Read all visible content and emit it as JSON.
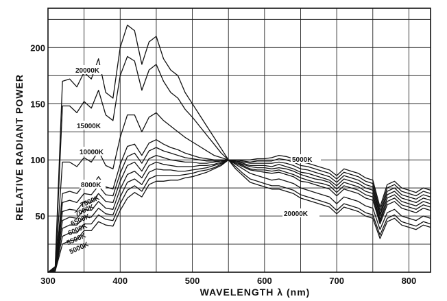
{
  "chart_data": {
    "type": "line",
    "title": "",
    "xlabel": "WAVELENGTH λ (nm)",
    "ylabel": "RELATIVE RADIANT POWER",
    "xlim": [
      300,
      830
    ],
    "ylim": [
      0,
      235
    ],
    "xticks": [
      300,
      400,
      500,
      600,
      700,
      800
    ],
    "xtick_labels": [
      "300",
      "400",
      "500",
      "600",
      "700",
      "800"
    ],
    "yticks": [
      50,
      100,
      150,
      200
    ],
    "ytick_labels": [
      "50",
      "100",
      "150",
      "200"
    ],
    "grid": true,
    "x": [
      300,
      310,
      320,
      330,
      340,
      350,
      360,
      370,
      380,
      390,
      400,
      410,
      420,
      430,
      440,
      450,
      460,
      470,
      480,
      490,
      500,
      510,
      520,
      530,
      540,
      550,
      560,
      570,
      580,
      590,
      600,
      610,
      620,
      630,
      640,
      650,
      660,
      670,
      680,
      690,
      700,
      710,
      720,
      730,
      740,
      750,
      760,
      770,
      780,
      790,
      800,
      810,
      820,
      830
    ],
    "series": [
      {
        "name": "20000K",
        "label": "20000K",
        "values": [
          0,
          5,
          170,
          172,
          165,
          178,
          172,
          190,
          160,
          155,
          200,
          220,
          215,
          185,
          205,
          210,
          190,
          180,
          175,
          160,
          150,
          140,
          130,
          120,
          110,
          100,
          92,
          86,
          80,
          78,
          76,
          74,
          74,
          72,
          70,
          66,
          64,
          62,
          60,
          58,
          52,
          58,
          56,
          54,
          50,
          48,
          30,
          45,
          48,
          42,
          40,
          38,
          42,
          40
        ]
      },
      {
        "name": "15000K",
        "label": "15000K",
        "values": [
          0,
          4,
          148,
          148,
          142,
          152,
          146,
          162,
          140,
          135,
          175,
          192,
          188,
          162,
          180,
          185,
          170,
          160,
          155,
          145,
          138,
          130,
          122,
          114,
          106,
          100,
          94,
          88,
          83,
          81,
          79,
          77,
          77,
          75,
          73,
          69,
          67,
          65,
          63,
          61,
          55,
          61,
          59,
          57,
          53,
          51,
          33,
          48,
          51,
          45,
          43,
          41,
          45,
          43
        ]
      },
      {
        "name": "10000K",
        "label": "10000K",
        "values": [
          0,
          3,
          98,
          98,
          94,
          102,
          98,
          108,
          95,
          92,
          120,
          140,
          140,
          125,
          138,
          142,
          135,
          130,
          125,
          120,
          116,
          112,
          108,
          104,
          102,
          100,
          96,
          92,
          88,
          86,
          84,
          82,
          83,
          81,
          79,
          75,
          73,
          71,
          69,
          67,
          61,
          67,
          65,
          63,
          59,
          57,
          38,
          53,
          56,
          50,
          48,
          46,
          50,
          48
        ]
      },
      {
        "name": "8000K",
        "label": "8000K",
        "values": [
          0,
          2,
          70,
          72,
          70,
          78,
          76,
          85,
          76,
          74,
          96,
          112,
          114,
          104,
          115,
          118,
          114,
          111,
          109,
          106,
          104,
          102,
          101,
          100,
          100,
          100,
          97,
          94,
          91,
          90,
          89,
          88,
          89,
          87,
          85,
          81,
          80,
          78,
          76,
          74,
          68,
          74,
          72,
          70,
          66,
          64,
          43,
          60,
          63,
          57,
          55,
          53,
          57,
          55
        ]
      },
      {
        "name": "7500K",
        "label": "7500K",
        "values": [
          0,
          2,
          62,
          64,
          62,
          70,
          69,
          77,
          69,
          68,
          88,
          103,
          106,
          97,
          108,
          111,
          108,
          106,
          104,
          102,
          101,
          100,
          99,
          99,
          99,
          100,
          98,
          95,
          92,
          91,
          91,
          90,
          91,
          89,
          87,
          84,
          82,
          80,
          79,
          77,
          71,
          77,
          75,
          73,
          69,
          67,
          45,
          63,
          66,
          60,
          58,
          56,
          60,
          58
        ]
      },
      {
        "name": "7000K",
        "label": "7000K",
        "values": [
          0,
          2,
          54,
          56,
          55,
          63,
          62,
          70,
          63,
          62,
          81,
          95,
          98,
          90,
          101,
          104,
          102,
          100,
          99,
          98,
          98,
          97,
          97,
          98,
          99,
          100,
          98,
          96,
          94,
          93,
          93,
          92,
          93,
          92,
          90,
          87,
          85,
          83,
          82,
          80,
          74,
          80,
          78,
          76,
          72,
          70,
          47,
          66,
          69,
          63,
          61,
          59,
          63,
          61
        ]
      },
      {
        "name": "6500K",
        "label": "6500K",
        "values": [
          0,
          1,
          46,
          49,
          48,
          56,
          55,
          63,
          57,
          56,
          74,
          87,
          90,
          84,
          95,
          98,
          96,
          95,
          94,
          94,
          94,
          95,
          95,
          96,
          98,
          100,
          99,
          97,
          95,
          95,
          95,
          94,
          96,
          94,
          92,
          89,
          88,
          86,
          84,
          82,
          77,
          83,
          81,
          79,
          75,
          73,
          50,
          69,
          72,
          66,
          64,
          62,
          66,
          64
        ]
      },
      {
        "name": "6000K",
        "label": "6000K",
        "values": [
          0,
          1,
          39,
          42,
          42,
          49,
          49,
          57,
          52,
          51,
          67,
          80,
          83,
          78,
          89,
          92,
          91,
          91,
          90,
          90,
          91,
          92,
          93,
          95,
          97,
          100,
          99,
          98,
          97,
          97,
          97,
          97,
          98,
          97,
          95,
          92,
          91,
          89,
          87,
          85,
          80,
          86,
          84,
          82,
          78,
          76,
          52,
          72,
          75,
          69,
          67,
          65,
          69,
          67
        ]
      },
      {
        "name": "5500K",
        "label": "5500K",
        "values": [
          0,
          1,
          32,
          35,
          35,
          43,
          43,
          51,
          47,
          46,
          61,
          73,
          77,
          72,
          83,
          86,
          86,
          86,
          86,
          87,
          88,
          90,
          91,
          93,
          96,
          100,
          100,
          99,
          98,
          99,
          99,
          99,
          101,
          100,
          98,
          95,
          94,
          92,
          90,
          88,
          83,
          89,
          87,
          85,
          81,
          79,
          55,
          75,
          78,
          72,
          70,
          68,
          72,
          70
        ]
      },
      {
        "name": "5000K",
        "label": "5000K",
        "values": [
          0,
          1,
          25,
          28,
          29,
          37,
          37,
          45,
          42,
          41,
          55,
          66,
          71,
          67,
          78,
          81,
          81,
          82,
          82,
          84,
          85,
          87,
          89,
          92,
          95,
          100,
          100,
          100,
          100,
          101,
          101,
          102,
          104,
          103,
          101,
          98,
          97,
          95,
          93,
          91,
          86,
          92,
          90,
          88,
          84,
          82,
          58,
          78,
          81,
          75,
          73,
          71,
          75,
          73
        ]
      }
    ],
    "annotations": [
      "20000K",
      "15000K",
      "10000K",
      "8000K",
      "7500K",
      "7000K",
      "6500K",
      "6000K",
      "5500K",
      "5000K",
      "5000K",
      "20000K"
    ]
  }
}
